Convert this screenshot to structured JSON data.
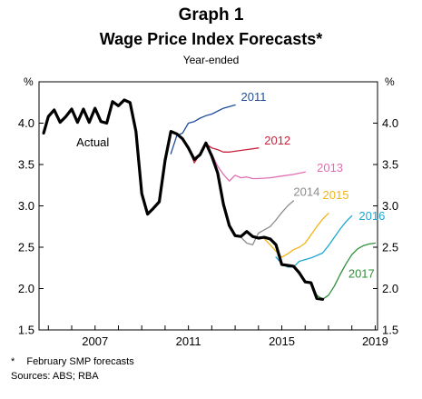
{
  "chart_data": {
    "type": "line",
    "title": "Graph 1",
    "subtitle": "Wage Price Index Forecasts*",
    "subtitle2": "Year-ended",
    "ylabel_left": "%",
    "ylabel_right": "%",
    "ylim": [
      1.5,
      4.5
    ],
    "y_ticks": [
      "1.5",
      "2.0",
      "2.5",
      "3.0",
      "3.5",
      "4.0"
    ],
    "xlim": [
      2004.6,
      2019.1
    ],
    "x_ticks": [
      {
        "label": "2007",
        "value": 2007
      },
      {
        "label": "2011",
        "value": 2011
      },
      {
        "label": "2015",
        "value": 2015
      },
      {
        "label": "2019",
        "value": 2019
      }
    ],
    "series": [
      {
        "name": "Actual",
        "color": "#000000",
        "width": 3.2,
        "label_at": [
          2006.2,
          3.72
        ],
        "label_anchor": "start",
        "points": [
          [
            2004.8,
            3.88
          ],
          [
            2005.0,
            4.08
          ],
          [
            2005.25,
            4.16
          ],
          [
            2005.5,
            4.01
          ],
          [
            2005.75,
            4.08
          ],
          [
            2006.0,
            4.17
          ],
          [
            2006.25,
            4.01
          ],
          [
            2006.5,
            4.17
          ],
          [
            2006.75,
            4.01
          ],
          [
            2007.0,
            4.18
          ],
          [
            2007.25,
            4.02
          ],
          [
            2007.5,
            4.0
          ],
          [
            2007.75,
            4.26
          ],
          [
            2008.0,
            4.21
          ],
          [
            2008.25,
            4.28
          ],
          [
            2008.5,
            4.25
          ],
          [
            2008.75,
            3.9
          ],
          [
            2009.0,
            3.15
          ],
          [
            2009.25,
            2.9
          ],
          [
            2009.5,
            2.97
          ],
          [
            2009.75,
            3.05
          ],
          [
            2010.0,
            3.55
          ],
          [
            2010.25,
            3.9
          ],
          [
            2010.5,
            3.87
          ],
          [
            2010.75,
            3.81
          ],
          [
            2011.0,
            3.7
          ],
          [
            2011.25,
            3.56
          ],
          [
            2011.5,
            3.62
          ],
          [
            2011.75,
            3.76
          ],
          [
            2012.0,
            3.6
          ],
          [
            2012.25,
            3.4
          ],
          [
            2012.5,
            3.02
          ],
          [
            2012.75,
            2.76
          ],
          [
            2013.0,
            2.64
          ],
          [
            2013.25,
            2.63
          ],
          [
            2013.5,
            2.69
          ],
          [
            2013.75,
            2.63
          ],
          [
            2014.0,
            2.61
          ],
          [
            2014.25,
            2.62
          ],
          [
            2014.5,
            2.6
          ],
          [
            2014.75,
            2.53
          ],
          [
            2015.0,
            2.29
          ],
          [
            2015.25,
            2.28
          ],
          [
            2015.5,
            2.27
          ],
          [
            2015.75,
            2.19
          ],
          [
            2016.0,
            2.08
          ],
          [
            2016.25,
            2.07
          ],
          [
            2016.5,
            1.88
          ],
          [
            2016.75,
            1.87
          ]
        ]
      },
      {
        "name": "2011",
        "color": "#1f4e9c",
        "width": 1.3,
        "label_at": [
          2013.25,
          4.27
        ],
        "label_anchor": "start",
        "points": [
          [
            2010.25,
            3.63
          ],
          [
            2010.5,
            3.85
          ],
          [
            2010.75,
            3.88
          ],
          [
            2011.0,
            4.0
          ],
          [
            2011.25,
            4.02
          ],
          [
            2011.5,
            4.06
          ],
          [
            2011.75,
            4.09
          ],
          [
            2012.0,
            4.11
          ],
          [
            2012.5,
            4.18
          ],
          [
            2013.0,
            4.22
          ]
        ]
      },
      {
        "name": "2012",
        "color": "#c8233c",
        "width": 1.3,
        "label_at": [
          2014.25,
          3.74
        ],
        "label_anchor": "start",
        "points": [
          [
            2011.0,
            3.72
          ],
          [
            2011.25,
            3.52
          ],
          [
            2011.5,
            3.63
          ],
          [
            2011.75,
            3.75
          ],
          [
            2012.0,
            3.7
          ],
          [
            2012.25,
            3.68
          ],
          [
            2012.5,
            3.65
          ],
          [
            2012.75,
            3.65
          ],
          [
            2013.0,
            3.66
          ],
          [
            2013.5,
            3.68
          ],
          [
            2014.0,
            3.7
          ]
        ]
      },
      {
        "name": "2013",
        "color": "#e06fb1",
        "width": 1.3,
        "label_at": [
          2016.5,
          3.41
        ],
        "label_anchor": "start",
        "points": [
          [
            2012.0,
            3.63
          ],
          [
            2012.25,
            3.48
          ],
          [
            2012.5,
            3.38
          ],
          [
            2012.75,
            3.3
          ],
          [
            2013.0,
            3.37
          ],
          [
            2013.25,
            3.34
          ],
          [
            2013.5,
            3.35
          ],
          [
            2013.75,
            3.33
          ],
          [
            2014.0,
            3.33
          ],
          [
            2014.5,
            3.34
          ],
          [
            2015.0,
            3.36
          ],
          [
            2015.5,
            3.38
          ],
          [
            2016.0,
            3.41
          ]
        ]
      },
      {
        "name": "2014",
        "color": "#8c8c8c",
        "width": 1.3,
        "label_at": [
          2015.5,
          3.12
        ],
        "label_anchor": "start",
        "points": [
          [
            2013.25,
            2.62
          ],
          [
            2013.5,
            2.55
          ],
          [
            2013.75,
            2.53
          ],
          [
            2014.0,
            2.67
          ],
          [
            2014.25,
            2.71
          ],
          [
            2014.5,
            2.75
          ],
          [
            2014.75,
            2.83
          ],
          [
            2015.0,
            2.92
          ],
          [
            2015.25,
            3.0
          ],
          [
            2015.5,
            3.06
          ]
        ]
      },
      {
        "name": "2015",
        "color": "#f2b419",
        "width": 1.3,
        "label_at": [
          2016.75,
          3.08
        ],
        "label_anchor": "start",
        "points": [
          [
            2014.25,
            2.6
          ],
          [
            2014.5,
            2.53
          ],
          [
            2014.75,
            2.45
          ],
          [
            2015.0,
            2.38
          ],
          [
            2015.25,
            2.42
          ],
          [
            2015.5,
            2.47
          ],
          [
            2015.75,
            2.5
          ],
          [
            2016.0,
            2.55
          ],
          [
            2016.25,
            2.65
          ],
          [
            2016.5,
            2.75
          ],
          [
            2016.75,
            2.84
          ],
          [
            2017.0,
            2.91
          ]
        ]
      },
      {
        "name": "2016",
        "color": "#1ea6d4",
        "width": 1.3,
        "label_at": [
          2018.3,
          2.83
        ],
        "label_anchor": "start",
        "points": [
          [
            2014.75,
            2.38
          ],
          [
            2015.0,
            2.3
          ],
          [
            2015.25,
            2.26
          ],
          [
            2015.5,
            2.26
          ],
          [
            2015.75,
            2.33
          ],
          [
            2016.0,
            2.35
          ],
          [
            2016.25,
            2.37
          ],
          [
            2016.5,
            2.4
          ],
          [
            2016.75,
            2.43
          ],
          [
            2017.0,
            2.52
          ],
          [
            2017.25,
            2.62
          ],
          [
            2017.5,
            2.72
          ],
          [
            2017.75,
            2.81
          ],
          [
            2018.0,
            2.88
          ]
        ]
      },
      {
        "name": "2017",
        "color": "#2f8f3b",
        "width": 1.3,
        "label_at": [
          2017.85,
          2.13
        ],
        "label_anchor": "start",
        "points": [
          [
            2016.25,
            2.07
          ],
          [
            2016.5,
            1.92
          ],
          [
            2016.75,
            1.87
          ],
          [
            2017.0,
            1.92
          ],
          [
            2017.25,
            2.03
          ],
          [
            2017.5,
            2.17
          ],
          [
            2017.75,
            2.3
          ],
          [
            2018.0,
            2.41
          ],
          [
            2018.25,
            2.48
          ],
          [
            2018.5,
            2.52
          ],
          [
            2018.75,
            2.54
          ],
          [
            2019.0,
            2.55
          ]
        ]
      }
    ]
  },
  "footnotes": {
    "star": "*",
    "note": "February SMP forecasts",
    "sources": "Sources: ABS; RBA"
  }
}
